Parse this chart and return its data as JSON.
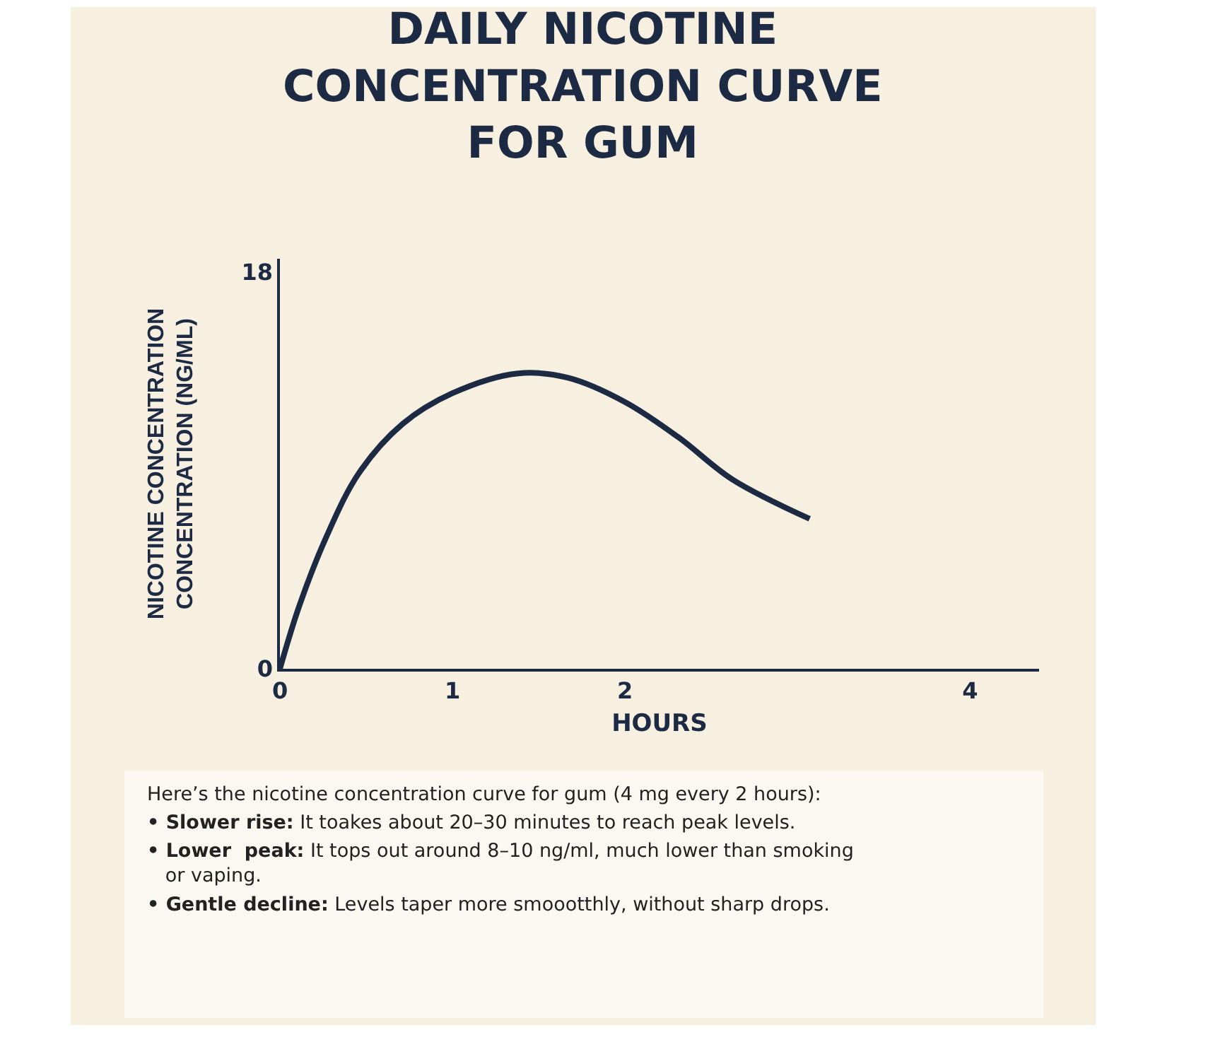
{
  "chart_data": {
    "type": "line",
    "title": "DAILY NICOTINE\nCONCENTRATION CURVE\nFOR GUM",
    "xlabel": "HOURS",
    "ylabel": "NICOTINE CONCENTRATION\nCONCENTRATION (NG/ML)",
    "x": [
      0,
      0.11,
      0.27,
      0.46,
      0.71,
      1.0,
      1.38,
      1.67,
      2.0,
      2.31,
      2.62,
      3.07
    ],
    "series": [
      {
        "color": "#1c2a44",
        "values": [
          0,
          2.8,
          6.0,
          8.9,
          11.1,
          12.5,
          13.4,
          13.2,
          12.1,
          10.5,
          8.6,
          6.8
        ]
      }
    ],
    "xlim": [
      0,
      4.4
    ],
    "xticks": [
      0,
      1,
      2,
      4
    ],
    "ylim": [
      0,
      18.6
    ],
    "yticks": [
      0,
      18
    ],
    "grid": false,
    "legend": false,
    "marker": "none",
    "line_style": "solid",
    "annotations": [
      "Here’s the nicotine concentration curve for gum (4 mg every 2 hours):",
      "• Slower rise: It toakes about 20–30 minutes to reach peak levels.",
      "• Lower  peak: It tops out around 8–10 ng/ml, much lower than smoking or vaping.",
      "• Gentle decline: Levels taper more smoootthly, without sharp drops."
    ]
  }
}
